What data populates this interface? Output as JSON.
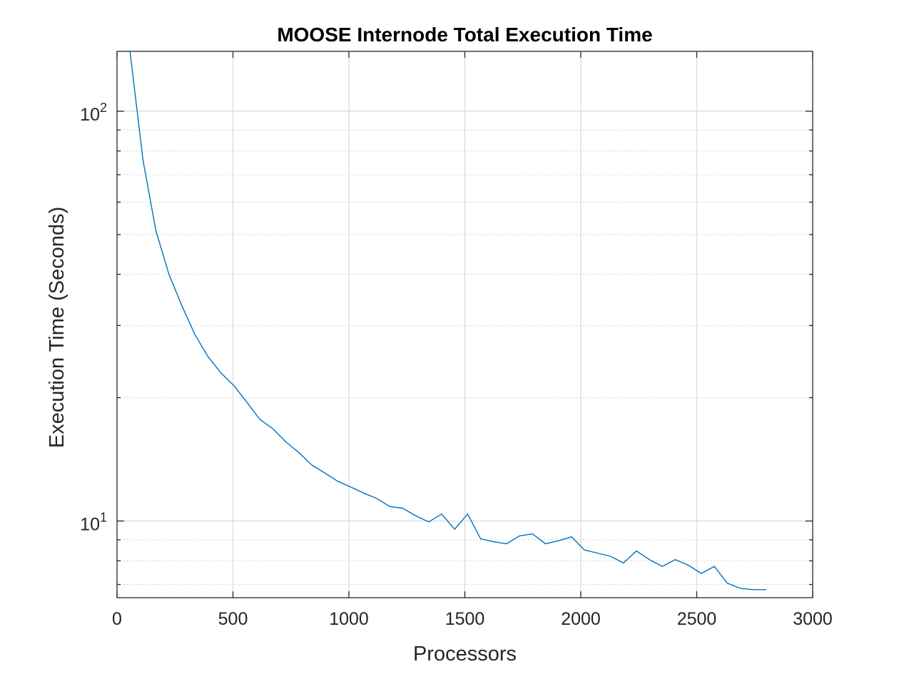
{
  "chart_data": {
    "type": "line",
    "title": "MOOSE Internode Total Execution Time",
    "xlabel": "Processors",
    "ylabel": "Execution Time (Seconds)",
    "xlim": [
      0,
      3000
    ],
    "ylim": [
      6.5,
      140
    ],
    "yscale": "log",
    "grid": true,
    "minor_grid": true,
    "x_ticks": [
      0,
      500,
      1000,
      1500,
      2000,
      2500,
      3000
    ],
    "x_tick_labels": [
      "0",
      "500",
      "1000",
      "1500",
      "2000",
      "2500",
      "3000"
    ],
    "y_ticks": [
      10,
      100
    ],
    "y_tick_labels": [
      {
        "base": "10",
        "exp": "1"
      },
      {
        "base": "10",
        "exp": "2"
      }
    ],
    "series": [
      {
        "color": "#0072bd",
        "x": [
          56,
          112,
          168,
          224,
          280,
          336,
          392,
          448,
          504,
          560,
          616,
          672,
          728,
          784,
          840,
          896,
          952,
          1008,
          1064,
          1120,
          1176,
          1232,
          1288,
          1344,
          1400,
          1456,
          1512,
          1568,
          1624,
          1680,
          1736,
          1792,
          1848,
          1904,
          1960,
          2016,
          2072,
          2128,
          2184,
          2240,
          2296,
          2352,
          2408,
          2464,
          2520,
          2576,
          2632,
          2688,
          2744,
          2800
        ],
        "y": [
          140,
          76,
          51,
          40,
          33.5,
          28.5,
          25.2,
          23,
          21.4,
          19.5,
          17.7,
          16.8,
          15.6,
          14.7,
          13.7,
          13.1,
          12.5,
          12.1,
          11.7,
          11.35,
          10.85,
          10.75,
          10.3,
          9.95,
          10.4,
          9.55,
          10.4,
          9.05,
          8.9,
          8.8,
          9.2,
          9.3,
          8.8,
          8.95,
          9.15,
          8.5,
          8.35,
          8.2,
          7.9,
          8.45,
          8.05,
          7.75,
          8.05,
          7.8,
          7.45,
          7.75,
          7.05,
          6.85,
          6.8,
          6.8
        ]
      }
    ]
  }
}
